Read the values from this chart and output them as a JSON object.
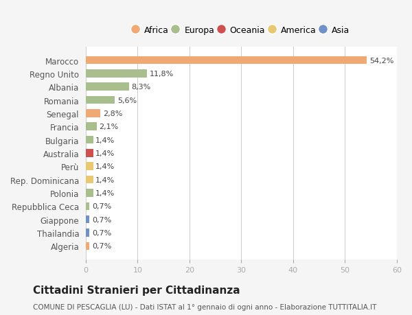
{
  "countries": [
    "Marocco",
    "Regno Unito",
    "Albania",
    "Romania",
    "Senegal",
    "Francia",
    "Bulgaria",
    "Australia",
    "Perù",
    "Rep. Dominicana",
    "Polonia",
    "Repubblica Ceca",
    "Giappone",
    "Thailandia",
    "Algeria"
  ],
  "values": [
    54.2,
    11.8,
    8.3,
    5.6,
    2.8,
    2.1,
    1.4,
    1.4,
    1.4,
    1.4,
    1.4,
    0.7,
    0.7,
    0.7,
    0.7
  ],
  "labels": [
    "54,2%",
    "11,8%",
    "8,3%",
    "5,6%",
    "2,8%",
    "2,1%",
    "1,4%",
    "1,4%",
    "1,4%",
    "1,4%",
    "1,4%",
    "0,7%",
    "0,7%",
    "0,7%",
    "0,7%"
  ],
  "continents": [
    "Africa",
    "Europa",
    "Europa",
    "Europa",
    "Africa",
    "Europa",
    "Europa",
    "Oceania",
    "America",
    "America",
    "Europa",
    "Europa",
    "Asia",
    "Asia",
    "Africa"
  ],
  "colors": {
    "Africa": "#F0A875",
    "Europa": "#A8BE8C",
    "Oceania": "#D05050",
    "America": "#E8C870",
    "Asia": "#7090C8"
  },
  "legend_order": [
    "Africa",
    "Europa",
    "Oceania",
    "America",
    "Asia"
  ],
  "legend_colors": {
    "Africa": "#F0A875",
    "Europa": "#A8BE8C",
    "Oceania": "#D05050",
    "America": "#E8C870",
    "Asia": "#7090C8"
  },
  "xlim": [
    0,
    60
  ],
  "xticks": [
    0,
    10,
    20,
    30,
    40,
    50,
    60
  ],
  "title": "Cittadini Stranieri per Cittadinanza",
  "subtitle": "COMUNE DI PESCAGLIA (LU) - Dati ISTAT al 1° gennaio di ogni anno - Elaborazione TUTTITALIA.IT",
  "background_color": "#f5f5f5",
  "bar_background_color": "#ffffff"
}
